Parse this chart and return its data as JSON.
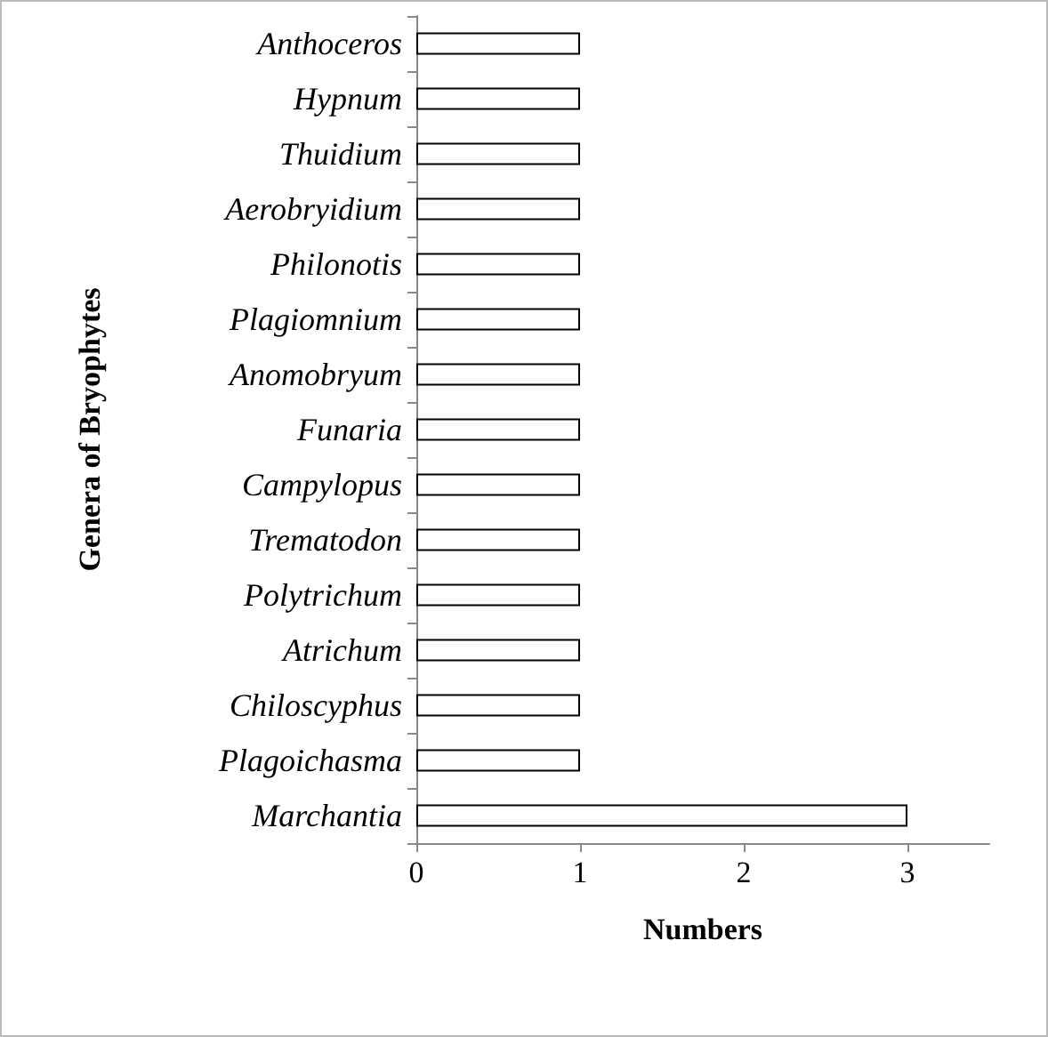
{
  "chart_data": {
    "type": "bar",
    "orientation": "horizontal",
    "xlabel": "Numbers",
    "ylabel": "Genera of Bryophytes",
    "categories": [
      "Anthoceros",
      "Hypnum",
      "Thuidium",
      "Aerobryidium",
      "Philonotis",
      "Plagiomnium",
      "Anomobryum",
      "Funaria",
      "Campylopus",
      "Trematodon",
      "Polytrichum",
      "Atrichum",
      "Chiloscyphus",
      "Plagoichasma",
      "Marchantia"
    ],
    "values": [
      1,
      1,
      1,
      1,
      1,
      1,
      1,
      1,
      1,
      1,
      1,
      1,
      1,
      1,
      3
    ],
    "color": "#ffffff",
    "xlim": [
      0,
      3.5
    ],
    "xticks": [
      0,
      1,
      2,
      3
    ]
  }
}
